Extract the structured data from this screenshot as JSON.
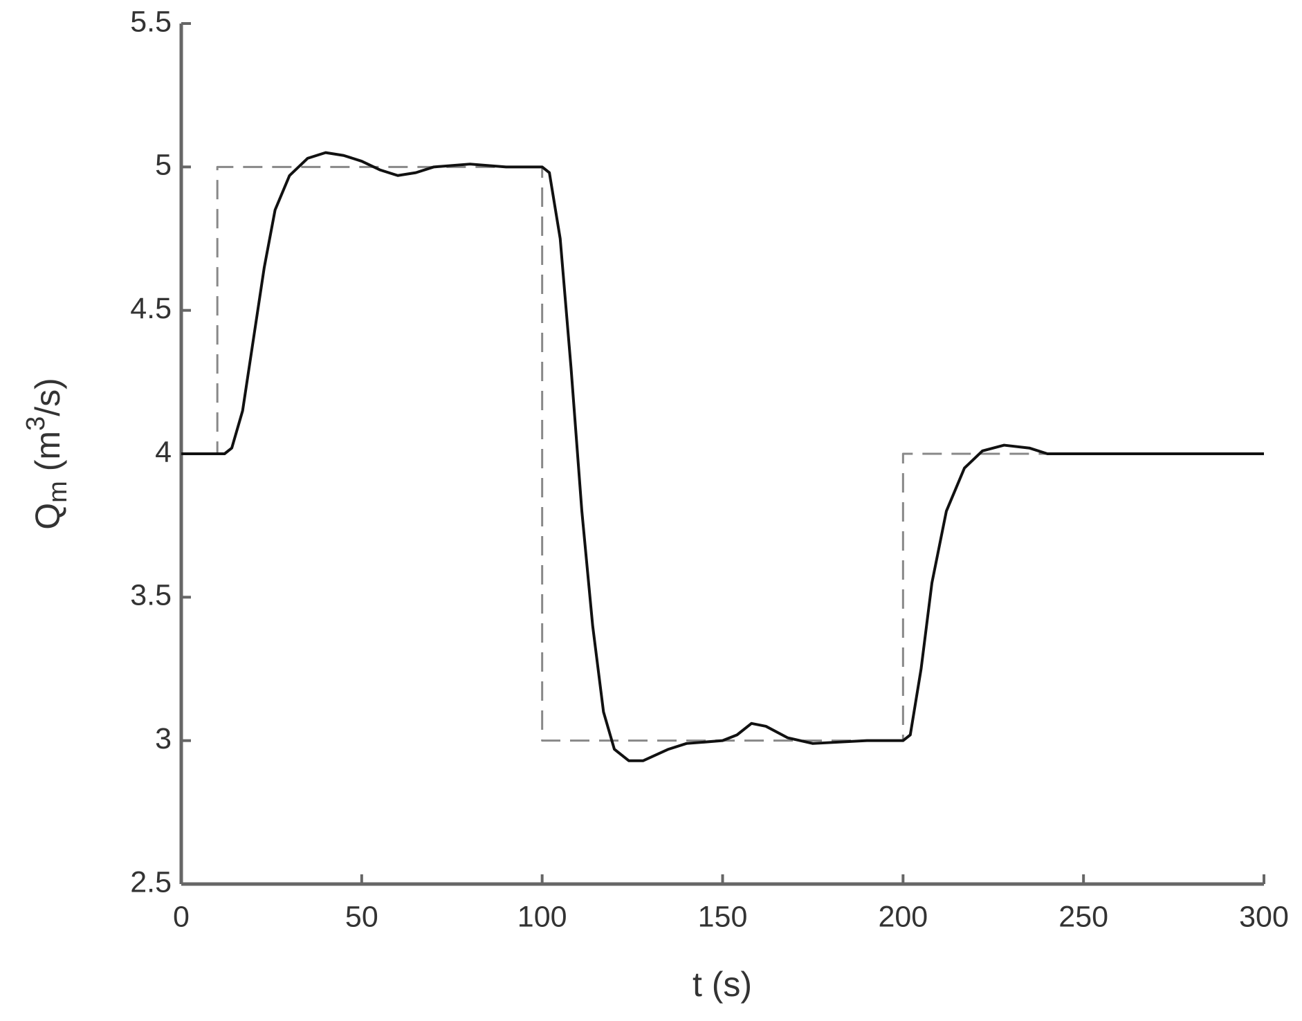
{
  "chart_data": {
    "type": "line",
    "xlabel": "t (s)",
    "ylabel": [
      "Q",
      "m",
      "(m",
      "3",
      "/s)"
    ],
    "xlim": [
      0,
      300
    ],
    "xticks": [
      0,
      50,
      100,
      150,
      200,
      250,
      300
    ],
    "ylim": [
      2.5,
      5.5
    ],
    "yticks": [
      2.5,
      3,
      3.5,
      4,
      4.5,
      5,
      5.5
    ],
    "series": [
      {
        "color": "#888888",
        "dash": true,
        "x": [
          0,
          10,
          10,
          100,
          100,
          200,
          200,
          300
        ],
        "values": [
          4,
          4,
          5,
          5,
          3,
          3,
          4,
          4
        ]
      },
      {
        "color": "#111111",
        "dash": false,
        "x": [
          0,
          12,
          14,
          17,
          20,
          23,
          26,
          30,
          35,
          40,
          45,
          50,
          55,
          60,
          65,
          70,
          80,
          90,
          100,
          102,
          105,
          108,
          111,
          114,
          117,
          120,
          124,
          128,
          135,
          140,
          150,
          154,
          158,
          162,
          168,
          175,
          190,
          200,
          202,
          205,
          208,
          212,
          217,
          222,
          228,
          235,
          240,
          260,
          300
        ],
        "values": [
          4,
          4,
          4.02,
          4.15,
          4.4,
          4.65,
          4.85,
          4.97,
          5.03,
          5.05,
          5.04,
          5.02,
          4.99,
          4.97,
          4.98,
          5.0,
          5.01,
          5.0,
          5.0,
          4.98,
          4.75,
          4.3,
          3.8,
          3.4,
          3.1,
          2.97,
          2.93,
          2.93,
          2.97,
          2.99,
          3.0,
          3.02,
          3.06,
          3.05,
          3.01,
          2.99,
          3.0,
          3.0,
          3.02,
          3.25,
          3.55,
          3.8,
          3.95,
          4.01,
          4.03,
          4.02,
          4.0,
          4.0,
          4.0
        ]
      }
    ]
  }
}
